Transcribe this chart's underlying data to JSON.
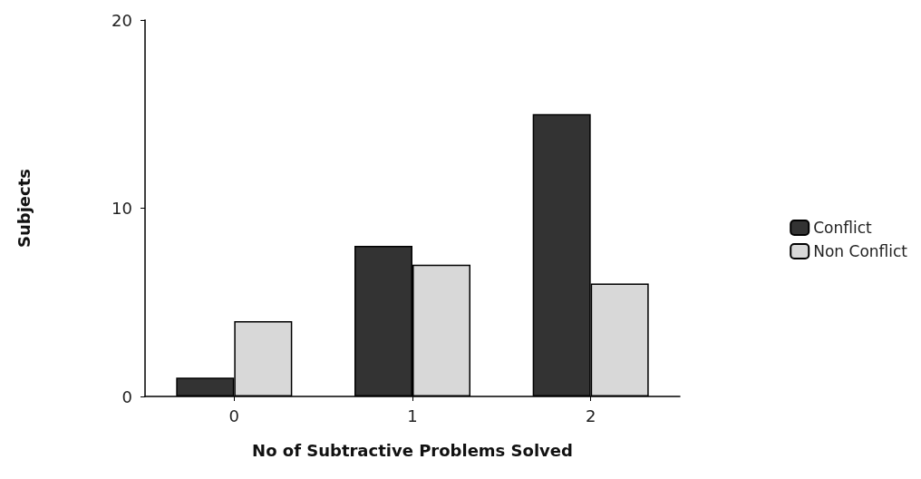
{
  "chart_data": {
    "type": "bar",
    "xlabel": "No of Subtractive Problems Solved",
    "ylabel": "Subjects",
    "categories": [
      "0",
      "1",
      "2"
    ],
    "series": [
      {
        "name": "Conflict",
        "color": "#333333",
        "values": [
          1,
          8,
          15
        ]
      },
      {
        "name": "Non Conflict",
        "color": "#d8d8d8",
        "values": [
          4,
          7,
          6
        ]
      }
    ],
    "ylim": [
      0,
      20
    ],
    "yticks": [
      0,
      10,
      20
    ],
    "grid": false,
    "legend": "right"
  }
}
